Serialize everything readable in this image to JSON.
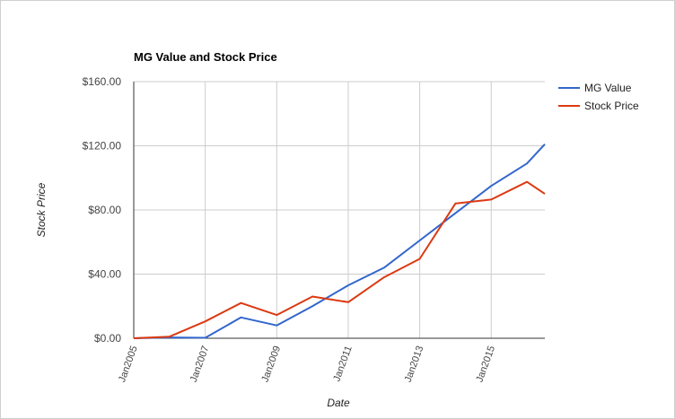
{
  "chart_data": {
    "type": "line",
    "title": "MG Value and Stock Price",
    "xlabel": "Date",
    "ylabel": "Stock Price",
    "x_tick_labels": [
      "Jan2005",
      "Jan2007",
      "Jan2009",
      "Jan2011",
      "Jan2013",
      "Jan2015"
    ],
    "y_tick_labels": [
      "$0.00",
      "$40.00",
      "$80.00",
      "$120.00",
      "$160.00"
    ],
    "y_ticks": [
      0,
      40,
      80,
      120,
      160
    ],
    "ylim": [
      0,
      160
    ],
    "x_range": [
      "Jan2005",
      "Jul2016"
    ],
    "x": [
      "Jan2005",
      "Jan2006",
      "Jan2007",
      "Jan2008",
      "Jan2009",
      "Jan2010",
      "Jan2011",
      "Jan2012",
      "Jan2013",
      "Jan2014",
      "Jan2015",
      "Jan2016",
      "Jul2016"
    ],
    "series": [
      {
        "name": "MG Value",
        "color": "#3366cc",
        "values": [
          0,
          0.5,
          0.3,
          13,
          8,
          20,
          33,
          44,
          61,
          78,
          95,
          109,
          121
        ]
      },
      {
        "name": "Stock Price",
        "color": "#dc3912",
        "values": [
          0,
          1,
          10.5,
          22,
          14.5,
          26,
          22.5,
          38,
          49.5,
          84,
          86.5,
          97.5,
          90
        ]
      }
    ],
    "legend_position": "right",
    "grid": true
  }
}
